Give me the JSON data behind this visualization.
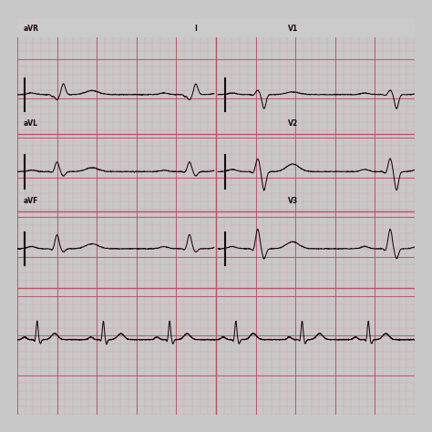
{
  "paper_color": "#f0c0cc",
  "grid_minor_color": "#e090a0",
  "grid_major_color": "#c05068",
  "ecg_color": "#1a0510",
  "label_color": "#1a0510",
  "outer_bg": "#c8c8c8",
  "top_strip_color": "#d8d8d8",
  "fig_width": 4.74,
  "fig_height": 4.74,
  "dpi": 100,
  "labels_left": [
    "aVR",
    "aVL",
    "aVF"
  ],
  "labels_right": [
    "V1",
    "V2",
    "V3"
  ],
  "label_top_left": "I",
  "label_top_right": "V1"
}
